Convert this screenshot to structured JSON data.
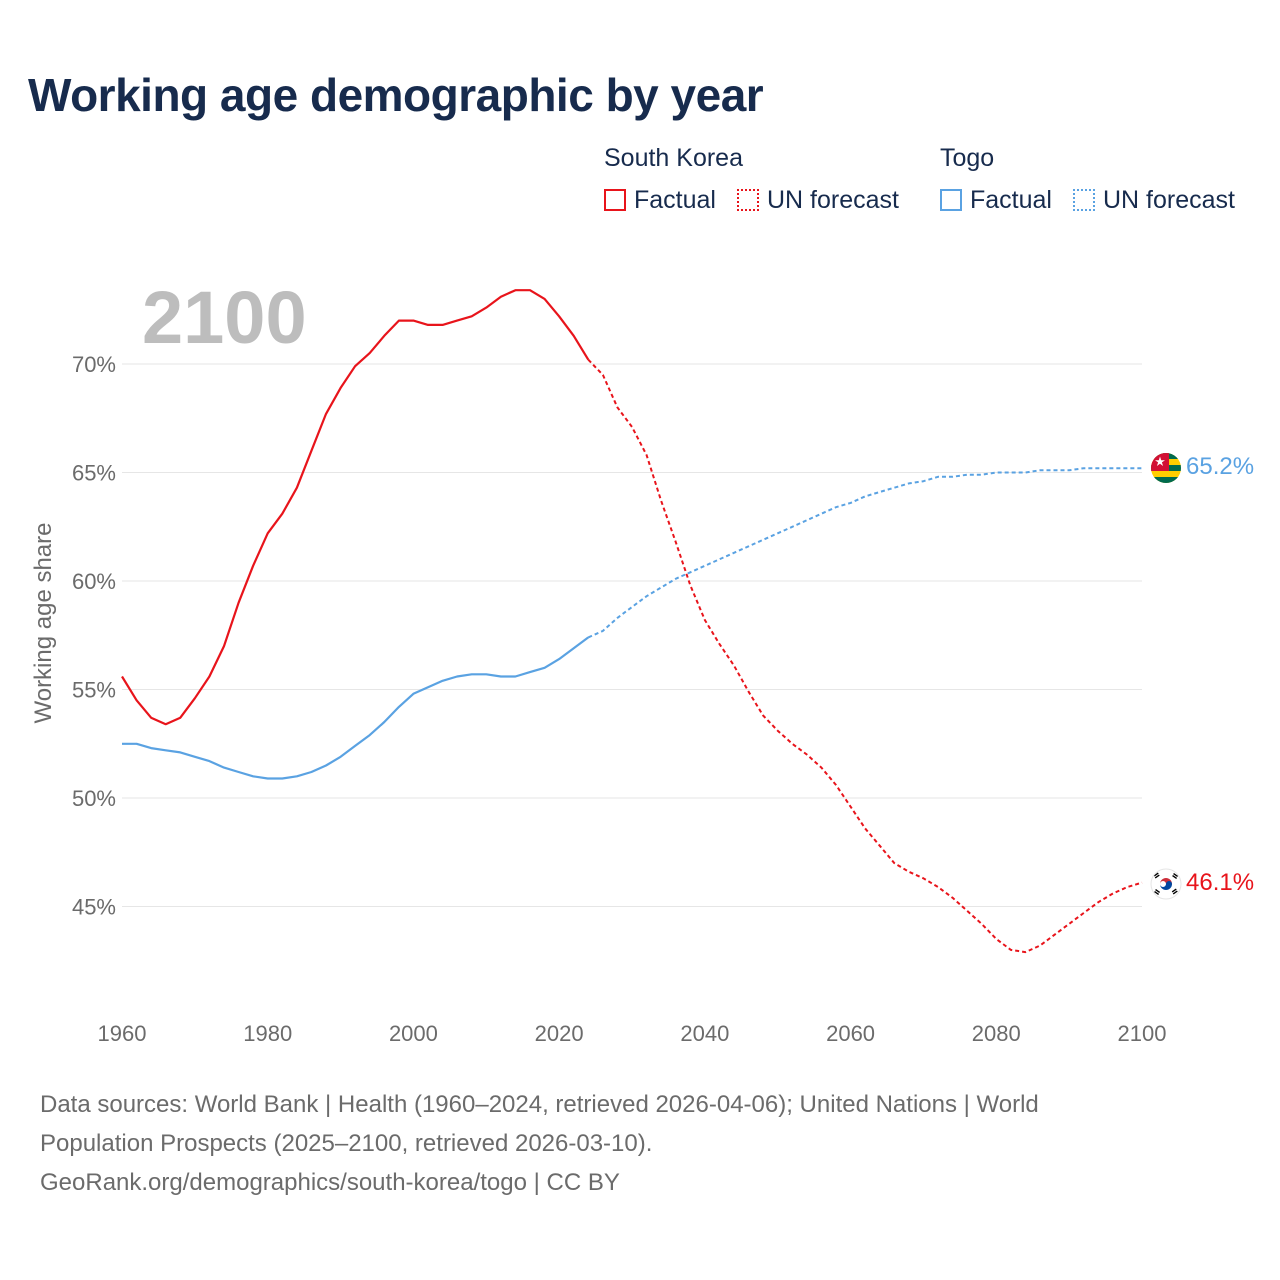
{
  "title": "Working age demographic by year",
  "legend": {
    "groups": [
      {
        "name": "South Korea",
        "color": "#e8141b",
        "items": [
          "Factual",
          "UN forecast"
        ]
      },
      {
        "name": "Togo",
        "color": "#5aa2e2",
        "items": [
          "Factual",
          "UN forecast"
        ]
      }
    ]
  },
  "year_watermark": "2100",
  "footer": {
    "line1": "Data sources: World Bank | Health (1960–2024, retrieved 2026-04-06); United Nations | World",
    "line2": "Population Prospects (2025–2100, retrieved 2026-03-10).",
    "line3": "GeoRank.org/demographics/south-korea/togo | CC BY"
  },
  "chart_data": {
    "type": "line",
    "title": "Working age demographic by year",
    "xlabel": "",
    "ylabel": "Working age share",
    "xlim": [
      1960,
      2100
    ],
    "ylim": [
      41,
      75
    ],
    "x_ticks": [
      1960,
      1980,
      2000,
      2020,
      2040,
      2060,
      2080,
      2100
    ],
    "x_tick_labels": [
      "1960",
      "1980",
      "2000",
      "2020",
      "2040",
      "2060",
      "2080",
      "2100"
    ],
    "y_ticks": [
      45,
      50,
      55,
      60,
      65,
      70
    ],
    "y_tick_labels": [
      "45%",
      "50%",
      "55%",
      "60%",
      "65%",
      "70%"
    ],
    "grid": true,
    "forecast_start": 2024,
    "series": [
      {
        "name": "South Korea",
        "color": "#e8141b",
        "end_label": "46.1%",
        "flag": "south-korea-flag-icon",
        "points": [
          [
            1960,
            55.6
          ],
          [
            1962,
            54.5
          ],
          [
            1964,
            53.7
          ],
          [
            1966,
            53.4
          ],
          [
            1968,
            53.7
          ],
          [
            1970,
            54.6
          ],
          [
            1972,
            55.6
          ],
          [
            1974,
            57.0
          ],
          [
            1976,
            59.0
          ],
          [
            1978,
            60.7
          ],
          [
            1980,
            62.2
          ],
          [
            1982,
            63.1
          ],
          [
            1984,
            64.3
          ],
          [
            1986,
            66.0
          ],
          [
            1988,
            67.7
          ],
          [
            1990,
            68.9
          ],
          [
            1992,
            69.9
          ],
          [
            1994,
            70.5
          ],
          [
            1996,
            71.3
          ],
          [
            1998,
            72.0
          ],
          [
            2000,
            72.0
          ],
          [
            2002,
            71.8
          ],
          [
            2004,
            71.8
          ],
          [
            2006,
            72.0
          ],
          [
            2008,
            72.2
          ],
          [
            2010,
            72.6
          ],
          [
            2012,
            73.1
          ],
          [
            2014,
            73.4
          ],
          [
            2016,
            73.4
          ],
          [
            2018,
            73.0
          ],
          [
            2020,
            72.2
          ],
          [
            2022,
            71.3
          ],
          [
            2024,
            70.2
          ],
          [
            2026,
            69.5
          ],
          [
            2028,
            68.0
          ],
          [
            2030,
            67.1
          ],
          [
            2032,
            65.8
          ],
          [
            2034,
            63.7
          ],
          [
            2036,
            61.8
          ],
          [
            2038,
            59.8
          ],
          [
            2040,
            58.2
          ],
          [
            2042,
            57.1
          ],
          [
            2044,
            56.1
          ],
          [
            2046,
            54.9
          ],
          [
            2048,
            53.8
          ],
          [
            2050,
            53.1
          ],
          [
            2052,
            52.5
          ],
          [
            2054,
            52.0
          ],
          [
            2056,
            51.4
          ],
          [
            2058,
            50.6
          ],
          [
            2060,
            49.6
          ],
          [
            2062,
            48.6
          ],
          [
            2064,
            47.8
          ],
          [
            2066,
            47.0
          ],
          [
            2068,
            46.6
          ],
          [
            2070,
            46.3
          ],
          [
            2072,
            45.9
          ],
          [
            2074,
            45.4
          ],
          [
            2076,
            44.8
          ],
          [
            2078,
            44.2
          ],
          [
            2080,
            43.5
          ],
          [
            2082,
            43.0
          ],
          [
            2084,
            42.9
          ],
          [
            2086,
            43.2
          ],
          [
            2088,
            43.7
          ],
          [
            2090,
            44.2
          ],
          [
            2092,
            44.7
          ],
          [
            2094,
            45.2
          ],
          [
            2096,
            45.6
          ],
          [
            2098,
            45.9
          ],
          [
            2100,
            46.1
          ]
        ]
      },
      {
        "name": "Togo",
        "color": "#5aa2e2",
        "end_label": "65.2%",
        "flag": "togo-flag-icon",
        "points": [
          [
            1960,
            52.5
          ],
          [
            1962,
            52.5
          ],
          [
            1964,
            52.3
          ],
          [
            1966,
            52.2
          ],
          [
            1968,
            52.1
          ],
          [
            1970,
            51.9
          ],
          [
            1972,
            51.7
          ],
          [
            1974,
            51.4
          ],
          [
            1976,
            51.2
          ],
          [
            1978,
            51.0
          ],
          [
            1980,
            50.9
          ],
          [
            1982,
            50.9
          ],
          [
            1984,
            51.0
          ],
          [
            1986,
            51.2
          ],
          [
            1988,
            51.5
          ],
          [
            1990,
            51.9
          ],
          [
            1992,
            52.4
          ],
          [
            1994,
            52.9
          ],
          [
            1996,
            53.5
          ],
          [
            1998,
            54.2
          ],
          [
            2000,
            54.8
          ],
          [
            2002,
            55.1
          ],
          [
            2004,
            55.4
          ],
          [
            2006,
            55.6
          ],
          [
            2008,
            55.7
          ],
          [
            2010,
            55.7
          ],
          [
            2012,
            55.6
          ],
          [
            2014,
            55.6
          ],
          [
            2016,
            55.8
          ],
          [
            2018,
            56.0
          ],
          [
            2020,
            56.4
          ],
          [
            2022,
            56.9
          ],
          [
            2024,
            57.4
          ],
          [
            2026,
            57.7
          ],
          [
            2028,
            58.3
          ],
          [
            2030,
            58.8
          ],
          [
            2032,
            59.3
          ],
          [
            2034,
            59.7
          ],
          [
            2036,
            60.1
          ],
          [
            2038,
            60.4
          ],
          [
            2040,
            60.7
          ],
          [
            2042,
            61.0
          ],
          [
            2044,
            61.3
          ],
          [
            2046,
            61.6
          ],
          [
            2048,
            61.9
          ],
          [
            2050,
            62.2
          ],
          [
            2052,
            62.5
          ],
          [
            2054,
            62.8
          ],
          [
            2056,
            63.1
          ],
          [
            2058,
            63.4
          ],
          [
            2060,
            63.6
          ],
          [
            2062,
            63.9
          ],
          [
            2064,
            64.1
          ],
          [
            2066,
            64.3
          ],
          [
            2068,
            64.5
          ],
          [
            2070,
            64.6
          ],
          [
            2072,
            64.8
          ],
          [
            2074,
            64.8
          ],
          [
            2076,
            64.9
          ],
          [
            2078,
            64.9
          ],
          [
            2080,
            65.0
          ],
          [
            2082,
            65.0
          ],
          [
            2084,
            65.0
          ],
          [
            2086,
            65.1
          ],
          [
            2088,
            65.1
          ],
          [
            2090,
            65.1
          ],
          [
            2092,
            65.2
          ],
          [
            2094,
            65.2
          ],
          [
            2096,
            65.2
          ],
          [
            2098,
            65.2
          ],
          [
            2100,
            65.2
          ]
        ]
      }
    ]
  }
}
